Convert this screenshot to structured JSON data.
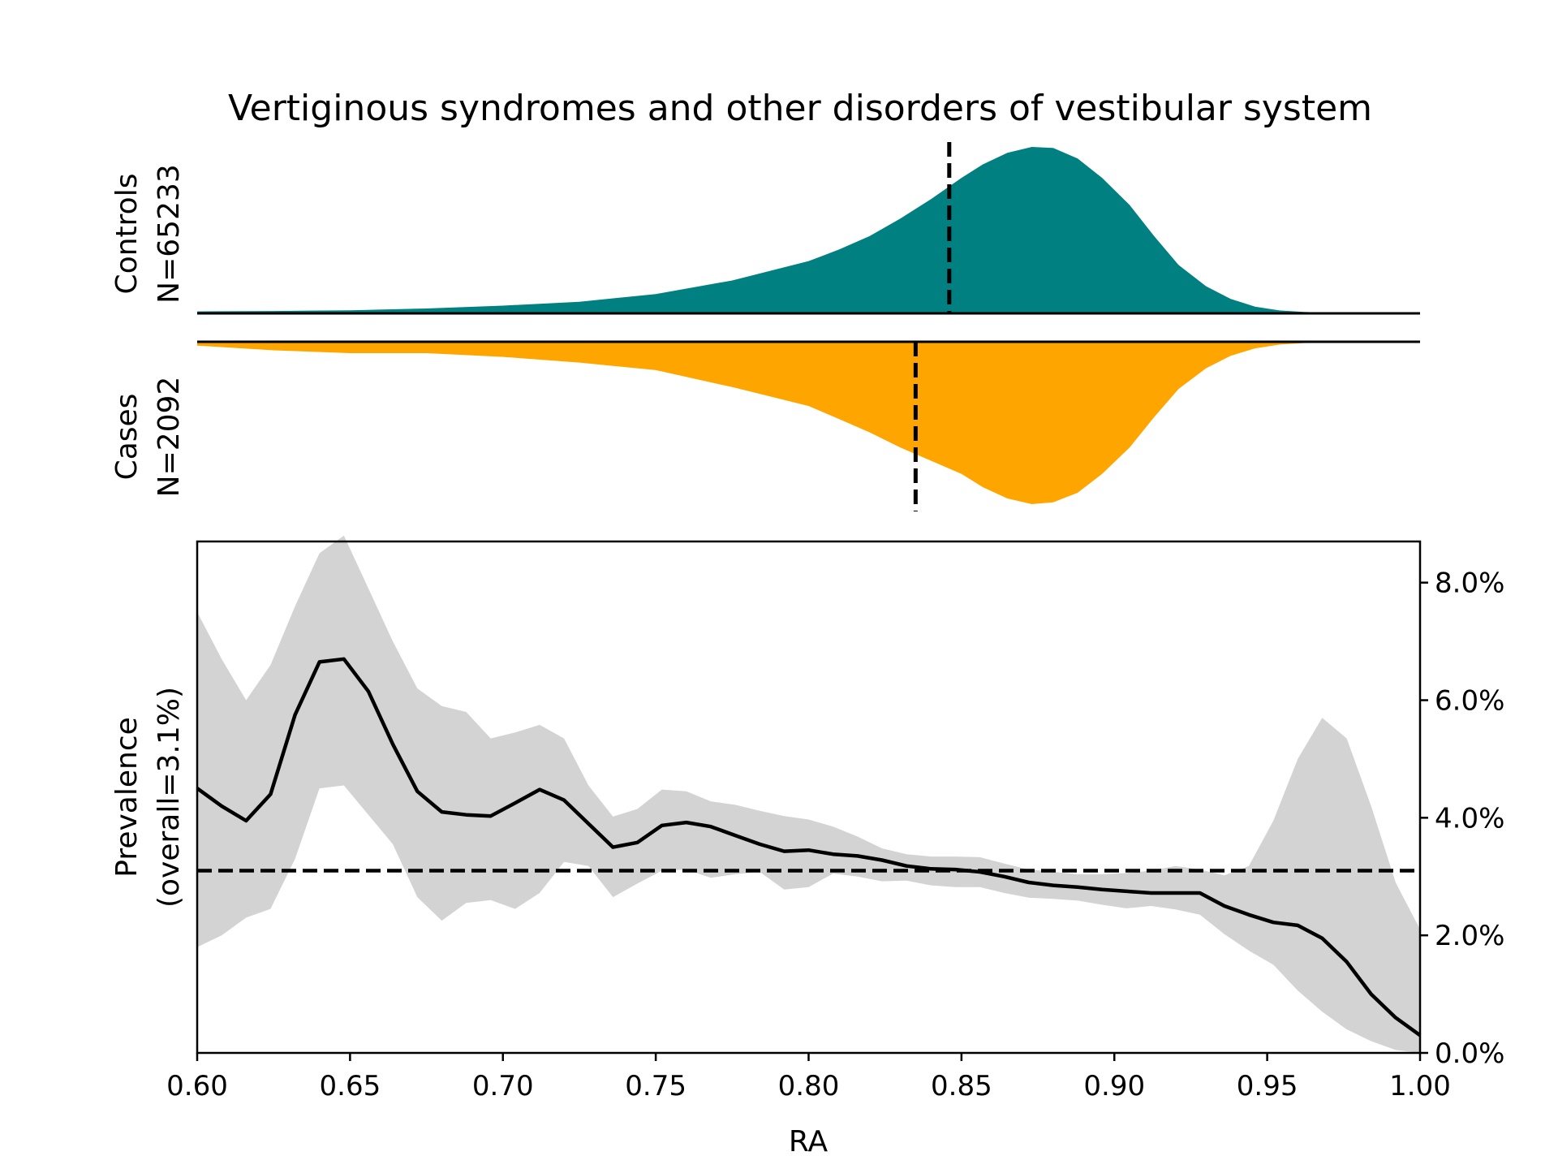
{
  "chart_data": {
    "type": "area",
    "title": "Vertiginous syndromes and other disorders of vestibular system",
    "xlabel": "RA",
    "xlim": [
      0.6,
      1.0
    ],
    "x_ticks": [
      "0.60",
      "0.65",
      "0.70",
      "0.75",
      "0.80",
      "0.85",
      "0.90",
      "0.95",
      "1.00"
    ],
    "density": {
      "x": [
        0.6,
        0.625,
        0.65,
        0.675,
        0.7,
        0.725,
        0.75,
        0.775,
        0.8,
        0.81,
        0.82,
        0.83,
        0.84,
        0.85,
        0.857,
        0.865,
        0.873,
        0.88,
        0.888,
        0.896,
        0.905,
        0.913,
        0.921,
        0.93,
        0.938,
        0.946,
        0.954,
        0.962,
        0.97,
        0.98,
        0.99,
        1.0
      ],
      "controls": {
        "label_line1": "Controls",
        "label_line2": "N=65233",
        "color": "#008080",
        "median": 0.846,
        "values": [
          0.01,
          0.012,
          0.016,
          0.025,
          0.04,
          0.06,
          0.1,
          0.17,
          0.27,
          0.33,
          0.4,
          0.49,
          0.59,
          0.7,
          0.77,
          0.83,
          0.86,
          0.855,
          0.8,
          0.7,
          0.56,
          0.4,
          0.25,
          0.14,
          0.075,
          0.035,
          0.015,
          0.007,
          0.003,
          0.001,
          0.0,
          0.0
        ]
      },
      "cases": {
        "label_line1": "Cases",
        "label_line2": "N=2092",
        "color": "#FFA500",
        "median": 0.835,
        "values": [
          0.02,
          0.045,
          0.06,
          0.06,
          0.08,
          0.11,
          0.15,
          0.24,
          0.34,
          0.41,
          0.48,
          0.56,
          0.63,
          0.7,
          0.77,
          0.83,
          0.86,
          0.85,
          0.8,
          0.7,
          0.56,
          0.4,
          0.25,
          0.14,
          0.075,
          0.035,
          0.015,
          0.007,
          0.003,
          0.001,
          0.0,
          0.0
        ]
      }
    },
    "prevalence": {
      "ylabel_line1": "Prevalence",
      "ylabel_line2": "(overall=3.1%)",
      "overall": 3.1,
      "ylim": [
        0,
        8.7
      ],
      "y_ticks": [
        "0.0%",
        "2.0%",
        "4.0%",
        "6.0%",
        "8.0%"
      ],
      "y_tick_values": [
        0,
        2,
        4,
        6,
        8
      ],
      "band_color": "#d3d3d3",
      "x": [
        0.6,
        0.608,
        0.616,
        0.624,
        0.632,
        0.64,
        0.648,
        0.656,
        0.664,
        0.672,
        0.68,
        0.688,
        0.696,
        0.704,
        0.712,
        0.72,
        0.728,
        0.736,
        0.744,
        0.752,
        0.76,
        0.768,
        0.776,
        0.784,
        0.792,
        0.8,
        0.808,
        0.816,
        0.824,
        0.832,
        0.84,
        0.848,
        0.856,
        0.864,
        0.872,
        0.88,
        0.888,
        0.896,
        0.904,
        0.912,
        0.92,
        0.928,
        0.936,
        0.944,
        0.952,
        0.96,
        0.968,
        0.976,
        0.984,
        0.992,
        1.0
      ],
      "mean": [
        4.5,
        4.2,
        3.95,
        4.4,
        5.75,
        6.65,
        6.7,
        6.15,
        5.25,
        4.45,
        4.1,
        4.05,
        4.03,
        4.25,
        4.48,
        4.3,
        3.9,
        3.5,
        3.58,
        3.87,
        3.92,
        3.85,
        3.7,
        3.55,
        3.43,
        3.45,
        3.38,
        3.35,
        3.28,
        3.18,
        3.13,
        3.12,
        3.08,
        3.0,
        2.9,
        2.85,
        2.82,
        2.78,
        2.75,
        2.72,
        2.72,
        2.72,
        2.5,
        2.35,
        2.22,
        2.17,
        1.95,
        1.55,
        1.0,
        0.6,
        0.3
      ],
      "upper": [
        7.5,
        6.7,
        6.0,
        6.6,
        7.6,
        8.5,
        8.8,
        7.9,
        7.0,
        6.2,
        5.9,
        5.8,
        5.35,
        5.45,
        5.58,
        5.35,
        4.55,
        4.02,
        4.15,
        4.48,
        4.45,
        4.28,
        4.22,
        4.12,
        4.03,
        3.97,
        3.85,
        3.68,
        3.48,
        3.38,
        3.34,
        3.34,
        3.33,
        3.22,
        3.12,
        3.08,
        3.04,
        3.04,
        3.06,
        3.1,
        3.18,
        3.12,
        3.02,
        3.18,
        3.95,
        5.0,
        5.7,
        5.35,
        4.2,
        2.9,
        2.1
      ],
      "lower": [
        1.8,
        2.0,
        2.3,
        2.45,
        3.3,
        4.5,
        4.55,
        4.05,
        3.55,
        2.65,
        2.25,
        2.55,
        2.6,
        2.45,
        2.72,
        3.25,
        3.18,
        2.65,
        2.88,
        3.1,
        3.12,
        2.98,
        3.04,
        3.08,
        2.78,
        2.82,
        3.05,
        3.0,
        2.92,
        2.93,
        2.85,
        2.82,
        2.82,
        2.72,
        2.64,
        2.62,
        2.59,
        2.52,
        2.46,
        2.5,
        2.44,
        2.35,
        2.02,
        1.74,
        1.5,
        1.06,
        0.7,
        0.4,
        0.2,
        0.05,
        0.0
      ]
    }
  }
}
